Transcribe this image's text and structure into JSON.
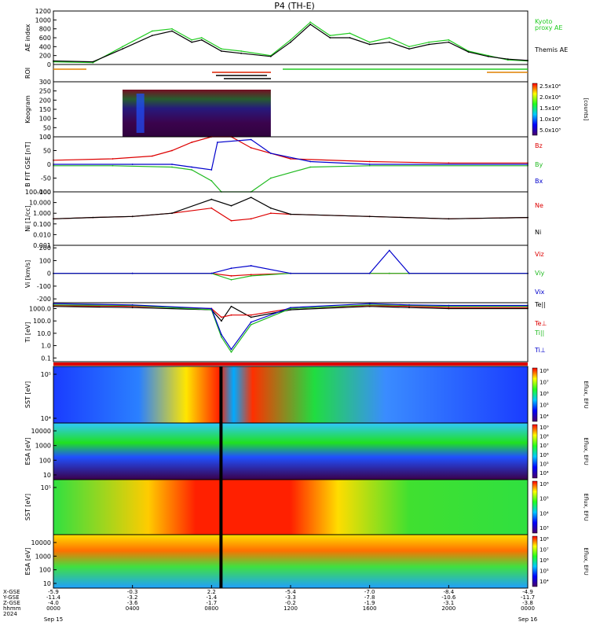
{
  "title": "P4 (TH-E)",
  "x_axis": {
    "tick_labels": [
      "0000",
      "0400",
      "0800",
      "1200",
      "1600",
      "2000",
      "0000"
    ],
    "date_labels": [
      "Sep 15",
      "",
      "",
      "",
      "",
      "",
      "Sep 16"
    ],
    "year_label": "2024",
    "row_labels": [
      "X-GSE",
      "Y-GSE",
      "Z-GSE",
      "hhmm",
      "2024"
    ],
    "rows": {
      "x_gse": [
        "-5.9",
        "-0.3",
        "2.2",
        "-5.4",
        "-7.0",
        "-8.4",
        "-4.9"
      ],
      "y_gse": [
        "-11.4",
        "-3.2",
        "-1.4",
        "-3.3",
        "-7.8",
        "-10.6",
        "-11.7"
      ],
      "z_gse": [
        "-4.0",
        "-3.6",
        "-1.7",
        "-0.2",
        "-1.9",
        "-3.1",
        "-3.8"
      ]
    }
  },
  "chart_data": [
    {
      "id": "ae",
      "type": "line",
      "ylabel": "AE index",
      "yticks": [
        "0",
        "200",
        "400",
        "600",
        "800",
        "1000",
        "1200"
      ],
      "ylim": [
        0,
        1200
      ],
      "series": [
        {
          "name": "Kyoto proxy AE",
          "color": "#22cc22",
          "x": [
            0,
            2,
            3.5,
            5,
            6,
            7,
            7.5,
            8.5,
            9.5,
            11,
            12,
            13,
            14,
            15,
            16,
            17,
            18,
            19,
            20,
            21,
            22,
            23,
            24
          ],
          "values": [
            60,
            40,
            400,
            750,
            800,
            550,
            600,
            350,
            300,
            200,
            550,
            950,
            650,
            700,
            500,
            600,
            400,
            500,
            550,
            300,
            200,
            100,
            80
          ]
        },
        {
          "name": "Themis AE",
          "color": "#000000",
          "x": [
            0,
            2,
            3.5,
            5,
            6,
            7,
            7.5,
            8.5,
            9.5,
            11,
            12,
            13,
            14,
            15,
            16,
            17,
            18,
            19,
            20,
            21,
            22,
            23,
            24
          ],
          "values": [
            80,
            60,
            350,
            650,
            750,
            500,
            550,
            300,
            250,
            180,
            500,
            900,
            600,
            600,
            450,
            500,
            350,
            450,
            500,
            280,
            180,
            120,
            90
          ]
        }
      ],
      "legend": [
        "Kyoto",
        "proxy AE",
        "Themis AE"
      ]
    },
    {
      "id": "roi",
      "type": "bar",
      "ylabel": "ROI"
    },
    {
      "id": "keogram",
      "type": "heatmap",
      "ylabel": "Keogram",
      "yticks": [
        "0",
        "50",
        "100",
        "150",
        "200",
        "250",
        "300"
      ],
      "ylim": [
        0,
        300
      ],
      "xlim_hours": [
        3.5,
        11
      ],
      "colorbar": {
        "labels": [
          "2.5x10⁴",
          "2.0x10⁴",
          "1.5x10⁴",
          "1.0x10⁴",
          "5.0x10³"
        ],
        "unit": "[counts]"
      }
    },
    {
      "id": "b",
      "type": "line",
      "ylabel": "B FIT GSE [nT]",
      "yticks": [
        "-100",
        "-50",
        "0",
        "50",
        "100"
      ],
      "ylim": [
        -100,
        100
      ],
      "series": [
        {
          "name": "Bz",
          "color": "#dd0000",
          "x": [
            0,
            3,
            5,
            6,
            7,
            8,
            9,
            10,
            12,
            16,
            20,
            24
          ],
          "values": [
            15,
            20,
            30,
            50,
            80,
            100,
            100,
            60,
            20,
            10,
            5,
            5
          ]
        },
        {
          "name": "By",
          "color": "#22bb22",
          "x": [
            0,
            3,
            6,
            7,
            8,
            8.5,
            10,
            11,
            13,
            16,
            24
          ],
          "values": [
            -5,
            -5,
            -10,
            -20,
            -60,
            -100,
            -100,
            -50,
            -10,
            -5,
            -5
          ]
        },
        {
          "name": "Bx",
          "color": "#0000cc",
          "x": [
            0,
            4,
            6,
            7,
            8,
            8.3,
            10,
            11,
            13,
            16,
            24
          ],
          "values": [
            0,
            0,
            0,
            -10,
            -20,
            80,
            90,
            40,
            10,
            0,
            0
          ]
        }
      ]
    },
    {
      "id": "n",
      "type": "line",
      "ylabel": "Ni [1/cc]",
      "scale": "log",
      "yticks": [
        "0.001",
        "0.010",
        "0.100",
        "1.000",
        "10.000",
        "100.000"
      ],
      "ylim": [
        0.001,
        100
      ],
      "series": [
        {
          "name": "Ne",
          "color": "#dd0000",
          "x": [
            0,
            2,
            4,
            6,
            8,
            9,
            10,
            11,
            12,
            16,
            20,
            24
          ],
          "values": [
            0.3,
            0.4,
            0.5,
            1,
            3,
            0.2,
            0.3,
            1,
            0.8,
            0.5,
            0.3,
            0.4
          ]
        },
        {
          "name": "Ni",
          "color": "#000000",
          "x": [
            0,
            2,
            4,
            6,
            8,
            9,
            10,
            11,
            12,
            16,
            20,
            24
          ],
          "values": [
            0.3,
            0.4,
            0.5,
            1,
            20,
            5,
            30,
            3,
            0.8,
            0.5,
            0.3,
            0.4
          ]
        }
      ]
    },
    {
      "id": "v",
      "type": "line",
      "ylabel": "Vi [km/s]",
      "yticks": [
        "-200",
        "-100",
        "0",
        "100",
        "200"
      ],
      "ylim": [
        -230,
        220
      ],
      "series": [
        {
          "name": "Viz",
          "color": "#dd0000",
          "x": [
            0,
            4,
            8,
            9,
            10,
            12,
            16,
            17,
            18,
            24
          ],
          "values": [
            0,
            0,
            0,
            -20,
            -10,
            0,
            0,
            0,
            0,
            0
          ]
        },
        {
          "name": "Viy",
          "color": "#22bb22",
          "x": [
            0,
            4,
            8,
            9,
            10,
            12,
            16,
            17,
            18,
            24
          ],
          "values": [
            0,
            0,
            0,
            -50,
            -20,
            0,
            0,
            0,
            0,
            0
          ]
        },
        {
          "name": "Vix",
          "color": "#0000cc",
          "x": [
            0,
            4,
            8,
            9,
            10,
            12,
            16,
            17,
            18,
            24
          ],
          "values": [
            0,
            0,
            0,
            40,
            60,
            0,
            0,
            180,
            0,
            0
          ]
        }
      ]
    },
    {
      "id": "t",
      "type": "line",
      "ylabel": "Ti [eV]",
      "scale": "log",
      "yticks": [
        "0.1",
        "1.0",
        "10.0",
        "100.0",
        "1000.0"
      ],
      "ylim": [
        0.05,
        3000
      ],
      "series": [
        {
          "name": "Te||",
          "color": "#000000",
          "x": [
            0,
            4,
            8,
            8.5,
            9,
            10,
            12,
            16,
            18,
            20,
            24
          ],
          "values": [
            1500,
            1200,
            800,
            100,
            1500,
            200,
            800,
            1500,
            1200,
            1000,
            1000
          ]
        },
        {
          "name": "Te⊥",
          "color": "#dd0000",
          "x": [
            0,
            4,
            8,
            8.5,
            9,
            10,
            12,
            16,
            18,
            20,
            24
          ],
          "values": [
            1800,
            1500,
            1000,
            200,
            300,
            300,
            1000,
            1800,
            1500,
            1200,
            1200
          ]
        },
        {
          "name": "Ti||",
          "color": "#22bb22",
          "x": [
            0,
            4,
            8,
            8.5,
            9,
            10,
            12,
            16,
            18,
            20,
            24
          ],
          "values": [
            2000,
            1800,
            800,
            5,
            0.3,
            50,
            1000,
            2000,
            1800,
            1500,
            1500
          ]
        },
        {
          "name": "Ti⊥",
          "color": "#0000cc",
          "x": [
            0,
            4,
            8,
            8.5,
            9,
            10,
            12,
            16,
            18,
            20,
            24
          ],
          "values": [
            2500,
            2000,
            1000,
            8,
            0.5,
            80,
            1200,
            2500,
            2000,
            1800,
            1800
          ]
        }
      ]
    },
    {
      "id": "sst_e",
      "type": "heatmap",
      "ylabel": "SST [eV]",
      "yticks": [
        "10⁵",
        "10⁴"
      ],
      "colorbar": {
        "labels": [
          "10⁸",
          "10⁷",
          "10⁶",
          "10⁵",
          "10⁴"
        ],
        "unit": "Eflux, EFU"
      }
    },
    {
      "id": "esa_e",
      "type": "heatmap",
      "ylabel": "ESA [eV]",
      "yticks": [
        "10000",
        "1000",
        "100",
        "10"
      ],
      "colorbar": {
        "labels": [
          "10⁹",
          "10⁸",
          "10⁷",
          "10⁶",
          "10⁵",
          "10⁴"
        ],
        "unit": "Eflux, EFU"
      }
    },
    {
      "id": "sst_i",
      "type": "heatmap",
      "ylabel": "SST [eV]",
      "yticks": [
        "10⁵"
      ],
      "colorbar": {
        "labels": [
          "10⁶",
          "10⁵",
          "10⁴",
          "10³"
        ],
        "unit": "Eflux, EFU"
      }
    },
    {
      "id": "esa_i",
      "type": "heatmap",
      "ylabel": "ESA [eV]",
      "yticks": [
        "10000",
        "1000",
        "100",
        "10"
      ],
      "colorbar": {
        "labels": [
          "10⁸",
          "10⁷",
          "10⁶",
          "10⁵",
          "10⁴"
        ],
        "unit": "Eflux, EFU"
      }
    }
  ]
}
